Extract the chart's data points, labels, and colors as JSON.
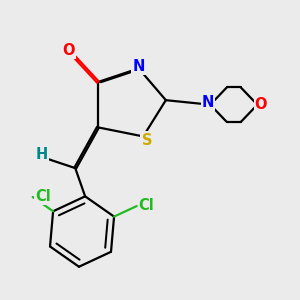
{
  "bg_color": "#ebebeb",
  "bond_color": "#000000",
  "atom_colors": {
    "O": "#ff0000",
    "N": "#0000ff",
    "S": "#ccaa00",
    "Cl": "#22bb22",
    "H": "#008888",
    "C": "#000000"
  },
  "lw": 1.6,
  "fs": 10.5
}
